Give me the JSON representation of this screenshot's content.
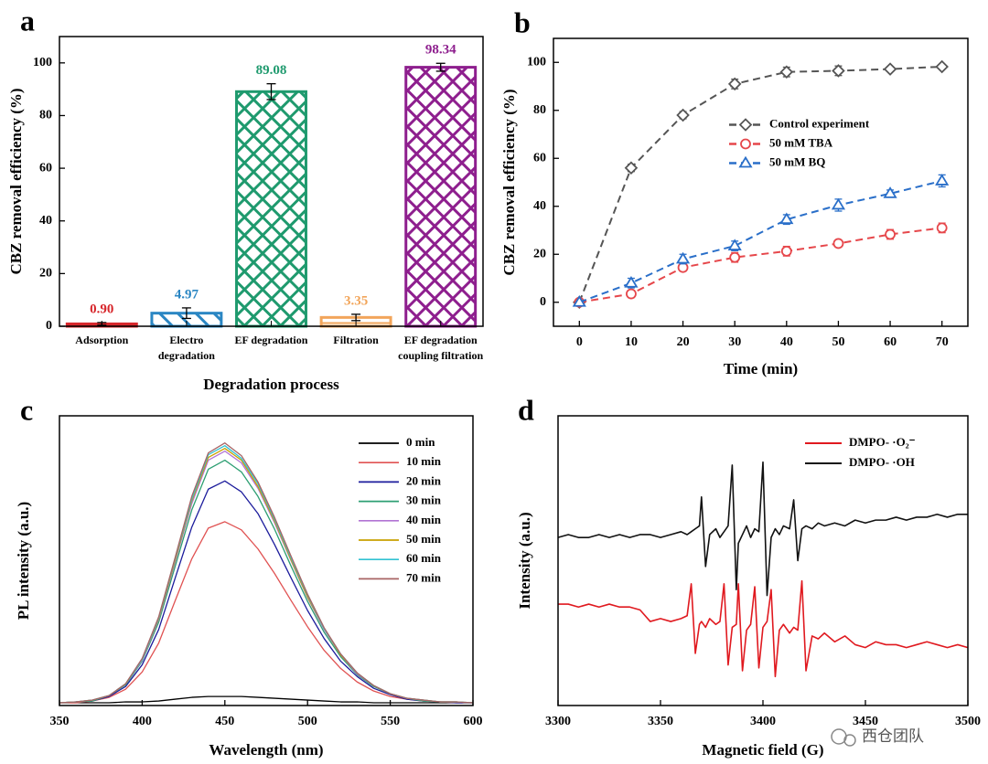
{
  "chart_data": [
    {
      "type": "bar",
      "panel_label": "a",
      "categories": [
        "Adsorption",
        "Electro\ndegradation",
        "EF degradation",
        "Filtration",
        "EF degradation\ncoupling filtration"
      ],
      "values": [
        0.9,
        4.97,
        89.08,
        3.35,
        98.34
      ],
      "value_labels": [
        "0.90",
        "4.97",
        "89.08",
        "3.35",
        "98.34"
      ],
      "errors": [
        0.5,
        2.0,
        3.0,
        1.2,
        1.5
      ],
      "colors": [
        "#d7262b",
        "#2a86c3",
        "#1f9a6e",
        "#f2a55a",
        "#8e1f8e"
      ],
      "hatch": [
        "solid",
        "diagonal",
        "crosshatch",
        "horizontal",
        "crosshatch"
      ],
      "xlabel": "Degradation process",
      "ylabel": "CBZ removal efficiency (%)",
      "ylim": [
        0,
        110
      ],
      "yticks": [
        0,
        20,
        40,
        60,
        80,
        100
      ]
    },
    {
      "type": "line",
      "panel_label": "b",
      "dashed": true,
      "legend": "center right",
      "x": [
        0,
        10,
        20,
        30,
        40,
        50,
        60,
        70
      ],
      "series": [
        {
          "name": "Control experiment",
          "color": "#555555",
          "marker": "diamond",
          "values": [
            0,
            56,
            78,
            91,
            96,
            96.5,
            97.2,
            98.2
          ],
          "errors": [
            0,
            1.5,
            1.5,
            2,
            2,
            2,
            1,
            0.5
          ]
        },
        {
          "name": "50 mM TBA",
          "color": "#e6474b",
          "marker": "circle",
          "values": [
            0,
            3.5,
            14.5,
            18.7,
            21.3,
            24.5,
            28.3,
            31
          ],
          "errors": [
            0,
            1.5,
            1.5,
            2,
            2,
            1.5,
            2,
            2
          ]
        },
        {
          "name": "50 mM BQ",
          "color": "#2a6fc9",
          "marker": "triangle",
          "values": [
            0,
            8,
            18,
            23.5,
            34.5,
            40.5,
            45.3,
            50.6
          ],
          "errors": [
            0,
            2,
            2,
            2,
            2,
            2.5,
            1.5,
            2.5
          ]
        }
      ],
      "xlabel": "Time (min)",
      "ylabel": "CBZ removal efficiency (%)",
      "xlim": [
        -5,
        75
      ],
      "xticks": [
        0,
        10,
        20,
        30,
        40,
        50,
        60,
        70
      ],
      "ylim": [
        -10,
        110
      ],
      "yticks": [
        0,
        20,
        40,
        60,
        80,
        100
      ]
    },
    {
      "type": "line",
      "panel_label": "c",
      "dashed": false,
      "legend": "upper right",
      "x": [
        350,
        360,
        370,
        380,
        390,
        400,
        410,
        420,
        430,
        440,
        450,
        460,
        470,
        480,
        490,
        500,
        510,
        520,
        530,
        540,
        550,
        560,
        570,
        580,
        590,
        600
      ],
      "series": [
        {
          "name": "0 min",
          "color": "#000000",
          "values": [
            3,
            3,
            3,
            3,
            4,
            4,
            5,
            7,
            9,
            10,
            10,
            10,
            9,
            8,
            7,
            6,
            5,
            4,
            4,
            3,
            3,
            3,
            3,
            3,
            3,
            3
          ]
        },
        {
          "name": "10 min",
          "color": "#e05252",
          "values": [
            3,
            3,
            5,
            9,
            18,
            37,
            69,
            116,
            162,
            196,
            203,
            194,
            173,
            146,
            116,
            87,
            61,
            41,
            26,
            16,
            10,
            7,
            5,
            4,
            3,
            3
          ]
        },
        {
          "name": "20 min",
          "color": "#1c1c9c",
          "values": [
            3,
            4,
            5,
            10,
            21,
            45,
            84,
            141,
            197,
            239,
            248,
            236,
            212,
            178,
            141,
            105,
            74,
            49,
            32,
            19,
            12,
            7,
            5,
            4,
            3,
            3
          ]
        },
        {
          "name": "30 min",
          "color": "#2e9f73",
          "values": [
            3,
            4,
            5,
            11,
            23,
            49,
            92,
            154,
            216,
            261,
            271,
            258,
            231,
            195,
            154,
            115,
            81,
            54,
            34,
            21,
            13,
            8,
            5,
            4,
            4,
            3
          ]
        },
        {
          "name": "40 min",
          "color": "#b274d4",
          "values": [
            3,
            4,
            6,
            11,
            24,
            50,
            95,
            159,
            223,
            271,
            281,
            268,
            240,
            202,
            160,
            119,
            84,
            56,
            35,
            22,
            13,
            8,
            6,
            4,
            4,
            3
          ]
        },
        {
          "name": "50 min",
          "color": "#c8a000",
          "values": [
            3,
            4,
            6,
            11,
            24,
            51,
            96,
            161,
            226,
            274,
            284,
            271,
            242,
            204,
            161,
            120,
            85,
            56,
            36,
            22,
            13,
            8,
            6,
            4,
            4,
            3
          ]
        },
        {
          "name": "60 min",
          "color": "#33c2d2",
          "values": [
            3,
            4,
            6,
            11,
            24,
            51,
            97,
            163,
            228,
            277,
            287,
            273,
            245,
            206,
            163,
            122,
            85,
            57,
            36,
            22,
            13,
            8,
            6,
            4,
            4,
            3
          ]
        },
        {
          "name": "70 min",
          "color": "#a86464",
          "values": [
            3,
            4,
            6,
            11,
            24,
            52,
            98,
            164,
            231,
            279,
            290,
            276,
            247,
            208,
            165,
            123,
            86,
            57,
            36,
            22,
            13,
            8,
            6,
            4,
            4,
            3
          ]
        }
      ],
      "xlabel": "Wavelength (nm)",
      "ylabel": "PL intensity (a.u.)",
      "xlim": [
        350,
        600
      ],
      "xticks": [
        350,
        400,
        450,
        500,
        550,
        600
      ],
      "ylim": [
        0,
        320
      ]
    },
    {
      "type": "line",
      "panel_label": "d",
      "dashed": false,
      "legend": "upper right",
      "x": [
        3300,
        3305,
        3310,
        3315,
        3320,
        3325,
        3330,
        3335,
        3340,
        3345,
        3350,
        3355,
        3360,
        3363,
        3365,
        3367,
        3369,
        3370,
        3372,
        3374,
        3377,
        3379,
        3381,
        3383,
        3385,
        3387,
        3388,
        3390,
        3392,
        3394,
        3396,
        3398,
        3400,
        3402,
        3404,
        3406,
        3408,
        3410,
        3413,
        3415,
        3417,
        3419,
        3421,
        3424,
        3427,
        3430,
        3435,
        3440,
        3445,
        3450,
        3455,
        3460,
        3465,
        3470,
        3475,
        3480,
        3485,
        3490,
        3495,
        3500
      ],
      "series": [
        {
          "name": "DMPO- ·O₂⁻",
          "color": "#e0191f",
          "values": [
            35,
            35,
            34,
            35,
            34,
            35,
            34,
            34,
            33,
            29,
            30,
            29,
            30,
            31,
            42,
            18,
            28,
            29,
            27,
            30,
            28,
            29,
            42,
            14,
            27,
            28,
            42,
            12,
            26,
            28,
            41,
            13,
            27,
            29,
            40,
            10,
            26,
            28,
            25,
            27,
            26,
            43,
            12,
            24,
            23,
            25,
            22,
            24,
            21,
            20,
            22,
            21,
            21,
            20,
            21,
            22,
            21,
            20,
            21,
            20
          ]
        },
        {
          "name": "DMPO- ·OH",
          "color": "#111111",
          "values": [
            58,
            59,
            58,
            58,
            59,
            58,
            59,
            58,
            59,
            59,
            58,
            59,
            60,
            59,
            60,
            61,
            62,
            72,
            48,
            59,
            61,
            58,
            60,
            62,
            83,
            40,
            56,
            59,
            62,
            58,
            61,
            60,
            84,
            38,
            58,
            61,
            59,
            62,
            61,
            71,
            50,
            61,
            62,
            61,
            63,
            62,
            63,
            62,
            64,
            63,
            64,
            64,
            65,
            64,
            65,
            65,
            66,
            65,
            66,
            66
          ]
        }
      ],
      "xlabel": "Magnetic field (G)",
      "ylabel": "Intensity (a.u.)",
      "xlim": [
        3300,
        3500
      ],
      "xticks": [
        3300,
        3350,
        3400,
        3450,
        3500
      ],
      "ylim": [
        0,
        100
      ]
    }
  ],
  "watermark": "西仓团队"
}
